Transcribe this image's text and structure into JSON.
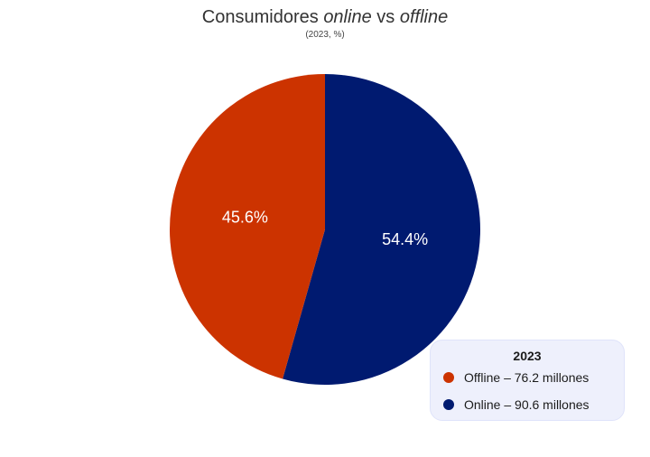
{
  "title": {
    "part1": "Consumidores ",
    "part2": "online",
    "part3": " vs ",
    "part4": "offline"
  },
  "subtitle": "(2023, %)",
  "colors": {
    "offline": "#cc3300",
    "online": "#001a70",
    "legend_bg": "#eef0fc",
    "slice_label": "#ffffff"
  },
  "chart_data": {
    "type": "pie",
    "title": "Consumidores online vs offline",
    "subtitle": "(2023, %)",
    "slices": [
      {
        "label": "Online",
        "value": 54.4,
        "display": "54.4%",
        "color": "#001a70"
      },
      {
        "label": "Offline",
        "value": 45.6,
        "display": "45.6%",
        "color": "#cc3300"
      }
    ],
    "legend": {
      "title": "2023",
      "placement": "bottom-right",
      "entries": [
        {
          "label": "Offline – 76.2 millones",
          "color": "#cc3300"
        },
        {
          "label": "Online – 90.6 millones",
          "color": "#001a70"
        }
      ]
    }
  }
}
